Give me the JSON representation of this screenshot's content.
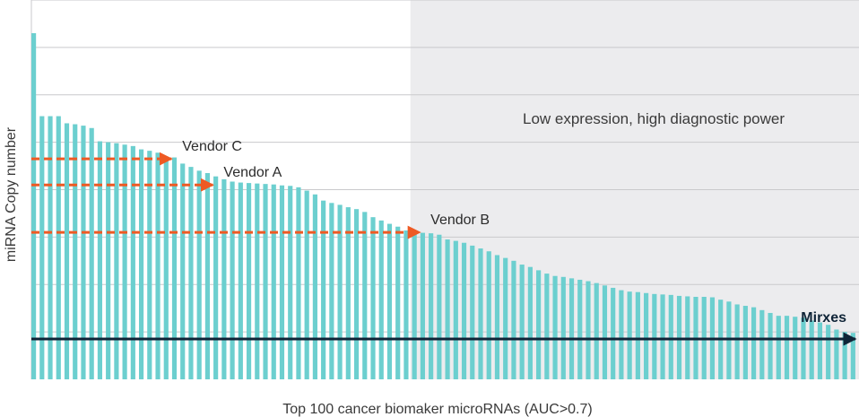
{
  "chart_data": {
    "type": "bar",
    "title": "",
    "xlabel": "Top 100 cancer biomaker microRNAs (AUC>0.7)",
    "ylabel": "miRNA Copy number",
    "ylim": [
      0,
      8
    ],
    "grid": true,
    "bar_color": "#6ccfcf",
    "shaded_region_label": "Low expression, high diagnostic power",
    "shaded_region_color": "#ececee",
    "shaded_region_start_index": 46,
    "values": [
      7.3,
      5.55,
      5.55,
      5.55,
      5.4,
      5.38,
      5.35,
      5.3,
      5.02,
      5.0,
      4.98,
      4.95,
      4.92,
      4.85,
      4.82,
      4.78,
      4.7,
      4.68,
      4.55,
      4.48,
      4.4,
      4.35,
      4.28,
      4.22,
      4.17,
      4.15,
      4.14,
      4.13,
      4.12,
      4.11,
      4.09,
      4.08,
      4.05,
      3.98,
      3.9,
      3.77,
      3.72,
      3.68,
      3.63,
      3.59,
      3.53,
      3.42,
      3.35,
      3.28,
      3.22,
      3.14,
      3.1,
      3.09,
      3.08,
      3.05,
      2.95,
      2.92,
      2.88,
      2.82,
      2.76,
      2.7,
      2.62,
      2.56,
      2.5,
      2.42,
      2.37,
      2.3,
      2.23,
      2.18,
      2.16,
      2.13,
      2.1,
      2.07,
      2.03,
      1.98,
      1.93,
      1.88,
      1.85,
      1.84,
      1.82,
      1.8,
      1.79,
      1.78,
      1.76,
      1.75,
      1.74,
      1.74,
      1.73,
      1.68,
      1.64,
      1.58,
      1.55,
      1.52,
      1.46,
      1.4,
      1.34,
      1.34,
      1.32,
      1.3,
      1.24,
      1.2,
      1.15,
      1.05,
      1.0,
      0.98
    ],
    "thresholds": [
      {
        "name": "Vendor C",
        "value": 4.65,
        "end_index": 16
      },
      {
        "name": "Vendor A",
        "value": 4.1,
        "end_index": 21
      },
      {
        "name": "Vendor B",
        "value": 3.1,
        "end_index": 46
      },
      {
        "name": "Mirxes",
        "value": 0.85,
        "end_index": 99
      }
    ],
    "threshold_colors": {
      "vendor": "#ee5a24",
      "mirxes": "#0f2437"
    }
  }
}
